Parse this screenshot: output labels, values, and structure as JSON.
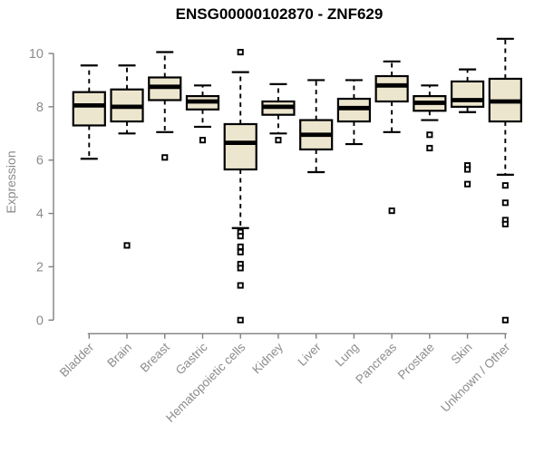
{
  "chart_data": {
    "type": "boxplot",
    "title": "ENSG00000102870 - ZNF629",
    "xlabel": "",
    "ylabel": "Expression",
    "ylim": [
      0,
      10
    ],
    "yticks": [
      0,
      2,
      4,
      6,
      8,
      10
    ],
    "grid": false,
    "legend": "none",
    "categories": [
      "Bladder",
      "Brain",
      "Breast",
      "Gastric",
      "Hematopoietic cells",
      "Kidney",
      "Liver",
      "Lung",
      "Pancreas",
      "Prostate",
      "Skin",
      "Unknown / Other"
    ],
    "boxes": [
      {
        "category": "Bladder",
        "whisker_low": 6.05,
        "q1": 7.3,
        "median": 8.05,
        "q3": 8.55,
        "whisker_high": 9.55,
        "outliers": []
      },
      {
        "category": "Brain",
        "whisker_low": 7.0,
        "q1": 7.45,
        "median": 8.0,
        "q3": 8.65,
        "whisker_high": 9.55,
        "outliers": [
          2.8
        ]
      },
      {
        "category": "Breast",
        "whisker_low": 7.05,
        "q1": 8.25,
        "median": 8.75,
        "q3": 9.1,
        "whisker_high": 10.05,
        "outliers": [
          6.1
        ]
      },
      {
        "category": "Gastric",
        "whisker_low": 7.25,
        "q1": 7.9,
        "median": 8.2,
        "q3": 8.4,
        "whisker_high": 8.8,
        "outliers": [
          6.75
        ]
      },
      {
        "category": "Hematopoietic cells",
        "whisker_low": 3.45,
        "q1": 5.65,
        "median": 6.65,
        "q3": 7.35,
        "whisker_high": 9.3,
        "outliers": [
          10.05,
          3.3,
          3.15,
          2.75,
          2.55,
          2.1,
          1.95,
          1.3,
          0.0
        ]
      },
      {
        "category": "Kidney",
        "whisker_low": 7.0,
        "q1": 7.7,
        "median": 8.0,
        "q3": 8.2,
        "whisker_high": 8.85,
        "outliers": [
          6.75
        ]
      },
      {
        "category": "Liver",
        "whisker_low": 5.55,
        "q1": 6.4,
        "median": 6.95,
        "q3": 7.5,
        "whisker_high": 9.0,
        "outliers": []
      },
      {
        "category": "Lung",
        "whisker_low": 6.6,
        "q1": 7.45,
        "median": 7.95,
        "q3": 8.3,
        "whisker_high": 9.0,
        "outliers": []
      },
      {
        "category": "Pancreas",
        "whisker_low": 7.05,
        "q1": 8.2,
        "median": 8.8,
        "q3": 9.15,
        "whisker_high": 9.7,
        "outliers": [
          4.1
        ]
      },
      {
        "category": "Prostate",
        "whisker_low": 7.5,
        "q1": 7.85,
        "median": 8.15,
        "q3": 8.4,
        "whisker_high": 8.8,
        "outliers": [
          6.95,
          6.45
        ]
      },
      {
        "category": "Skin",
        "whisker_low": 7.8,
        "q1": 8.0,
        "median": 8.25,
        "q3": 8.95,
        "whisker_high": 9.4,
        "outliers": [
          5.8,
          5.65,
          5.1
        ]
      },
      {
        "category": "Unknown / Other",
        "whisker_low": 5.45,
        "q1": 7.45,
        "median": 8.2,
        "q3": 9.05,
        "whisker_high": 10.55,
        "outliers": [
          5.05,
          4.4,
          3.75,
          3.6,
          0.0
        ]
      }
    ],
    "colors": {
      "box_fill": "#EDE6CE",
      "box_stroke": "#000000",
      "median": "#000000",
      "whisker": "#000000",
      "axis": "#7F7F7F",
      "tick_label": "#8C8C8C",
      "title": "#000000",
      "background": "#FFFFFF"
    }
  }
}
